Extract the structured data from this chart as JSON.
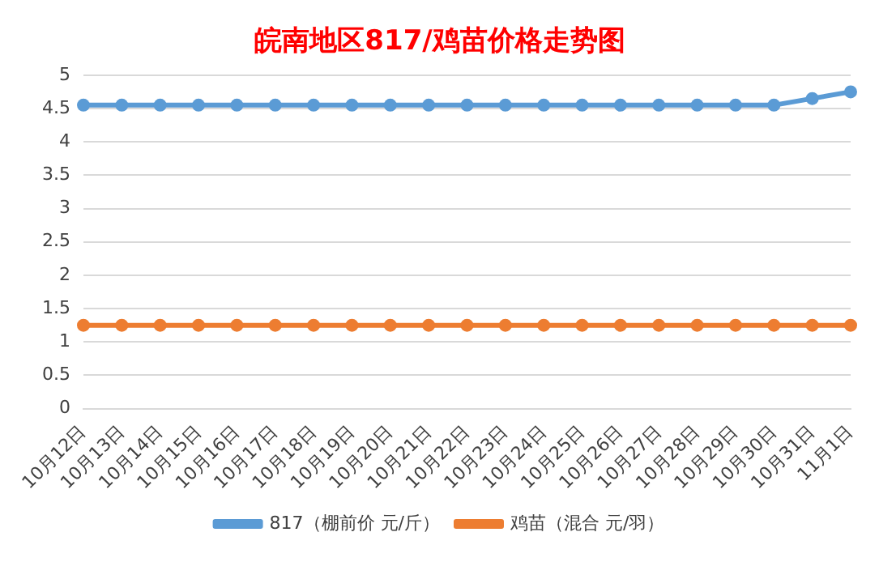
{
  "chart_data": {
    "type": "line",
    "title": "皖南地区817/鸡苗价格走势图",
    "categories": [
      "10月12日",
      "10月13日",
      "10月14日",
      "10月15日",
      "10月16日",
      "10月17日",
      "10月18日",
      "10月19日",
      "10月20日",
      "10月21日",
      "10月22日",
      "10月23日",
      "10月24日",
      "10月25日",
      "10月26日",
      "10月27日",
      "10月28日",
      "10月29日",
      "10月30日",
      "10月31日",
      "11月1日"
    ],
    "series": [
      {
        "name": "817（棚前价 元/斤）",
        "color": "#5b9bd5",
        "values": [
          4.55,
          4.55,
          4.55,
          4.55,
          4.55,
          4.55,
          4.55,
          4.55,
          4.55,
          4.55,
          4.55,
          4.55,
          4.55,
          4.55,
          4.55,
          4.55,
          4.55,
          4.55,
          4.55,
          4.65,
          4.75
        ]
      },
      {
        "name": "鸡苗（混合 元/羽）",
        "color": "#ed7d31",
        "values": [
          1.25,
          1.25,
          1.25,
          1.25,
          1.25,
          1.25,
          1.25,
          1.25,
          1.25,
          1.25,
          1.25,
          1.25,
          1.25,
          1.25,
          1.25,
          1.25,
          1.25,
          1.25,
          1.25,
          1.25,
          1.25
        ]
      }
    ],
    "ylim": [
      0,
      5
    ],
    "yticks": [
      0,
      0.5,
      1,
      1.5,
      2,
      2.5,
      3,
      3.5,
      4,
      4.5,
      5
    ],
    "grid": "y",
    "legend": "bottom",
    "marker": "circle",
    "line_style": "solid"
  }
}
